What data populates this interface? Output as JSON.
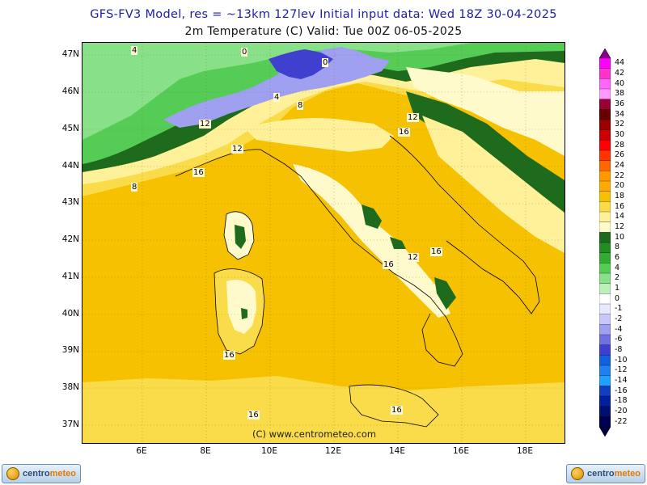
{
  "title_line1": "GFS-FV3 Model, res = ~13km 127lev    Initial input data: Wed 18Z 30-04-2025",
  "title_line2": "2m Temperature (C)  Valid: Tue 00Z 06-05-2025",
  "latitude_labels": [
    "47N",
    "46N",
    "45N",
    "44N",
    "43N",
    "42N",
    "41N",
    "40N",
    "39N",
    "38N",
    "37N"
  ],
  "longitude_labels": [
    "6E",
    "8E",
    "10E",
    "12E",
    "14E",
    "16E",
    "18E"
  ],
  "colorbar": {
    "labels": [
      "44",
      "42",
      "40",
      "38",
      "36",
      "34",
      "32",
      "30",
      "28",
      "26",
      "24",
      "22",
      "20",
      "18",
      "16",
      "14",
      "12",
      "10",
      "8",
      "6",
      "4",
      "2",
      "1",
      "0",
      "-1",
      "-2",
      "-4",
      "-6",
      "-8",
      "-10",
      "-12",
      "-14",
      "-16",
      "-18",
      "-20",
      "-22"
    ],
    "colors": [
      "#ff00ff",
      "#ff33cc",
      "#ff66ff",
      "#ff99ff",
      "#990033",
      "#660000",
      "#990000",
      "#cc0000",
      "#ff0000",
      "#ff3300",
      "#ff6600",
      "#ff9900",
      "#ffaa00",
      "#f6c100",
      "#fadc4a",
      "#fff09a",
      "#fffacc",
      "#1e6b1e",
      "#228b22",
      "#33aa33",
      "#55cc55",
      "#88e088",
      "#bbf0bb",
      "#ffffff",
      "#e8e8ff",
      "#c8c8f8",
      "#a0a0f0",
      "#7070e0",
      "#4040d0",
      "#1060e0",
      "#2080f0",
      "#20a0ff",
      "#1040c0",
      "#0020a0",
      "#001070",
      "#000050"
    ],
    "top_arrow_color": "#8b008b",
    "bottom_arrow_color": "#000040"
  },
  "contour_labels": [
    {
      "text": "4"
    },
    {
      "text": "0"
    },
    {
      "text": "0"
    },
    {
      "text": "4"
    },
    {
      "text": "8"
    },
    {
      "text": "12"
    },
    {
      "text": "12"
    },
    {
      "text": "12"
    },
    {
      "text": "16"
    },
    {
      "text": "8"
    },
    {
      "text": "16"
    },
    {
      "text": "16"
    },
    {
      "text": "12"
    },
    {
      "text": "16"
    },
    {
      "text": "16"
    },
    {
      "text": "16"
    },
    {
      "text": "16"
    }
  ],
  "watermark": "(C) www.centrometeo.com",
  "logo": {
    "text_main": "centro",
    "text_accent": "meteo"
  }
}
